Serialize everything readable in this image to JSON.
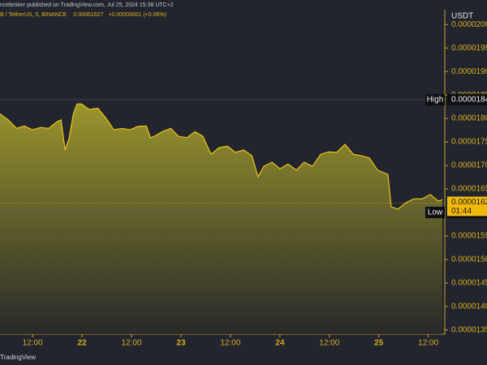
{
  "header": {
    "source": "ncebroker published on TradingView.com, Jul 25, 2024 15:38 UTC+2",
    "symbol": "B / TetherUS, 5, BINANCE",
    "last": "0.00001627",
    "change": "+0.00000001 (+0.06%)"
  },
  "footer": {
    "brand": "TradingView"
  },
  "chart_data": {
    "type": "area",
    "currency": "USDT",
    "x": [
      4.1,
      6.1,
      8.1,
      10.0,
      12.0,
      14.0,
      15.9,
      17.9,
      18.9,
      19.9,
      20.9,
      21.9,
      22.8,
      23.8,
      25.8,
      27.8,
      29.7,
      31.7,
      33.7,
      35.6,
      37.6,
      39.6,
      40.6,
      41.5,
      43.5,
      45.5,
      47.4,
      49.4,
      51.4,
      53.3,
      55.3,
      57.3,
      59.3,
      61.2,
      63.2,
      65.2,
      66.7,
      68.1,
      70.1,
      72.0,
      74.0,
      76.0,
      77.9,
      79.9,
      81.9,
      83.9,
      85.8,
      87.8,
      89.8,
      91.7,
      93.7,
      95.7,
      98.2,
      99.0,
      100.6,
      102.6,
      104.5,
      106.5,
      108.5,
      110.4,
      111.4
    ],
    "series": [
      {
        "name": "BTTC / TetherUS",
        "color": "#f0c419",
        "values": [
          1.81e-05,
          1.797e-05,
          1.779e-05,
          1.784e-05,
          1.776e-05,
          1.781e-05,
          1.779e-05,
          1.793e-05,
          1.797e-05,
          1.733e-05,
          1.759e-05,
          1.81e-05,
          1.831e-05,
          1.831e-05,
          1.819e-05,
          1.822e-05,
          1.802e-05,
          1.776e-05,
          1.779e-05,
          1.776e-05,
          1.783e-05,
          1.784e-05,
          1.759e-05,
          1.762e-05,
          1.772e-05,
          1.779e-05,
          1.762e-05,
          1.759e-05,
          1.772e-05,
          1.762e-05,
          1.724e-05,
          1.738e-05,
          1.741e-05,
          1.728e-05,
          1.733e-05,
          1.721e-05,
          1.676e-05,
          1.698e-05,
          1.707e-05,
          1.693e-05,
          1.703e-05,
          1.69e-05,
          1.707e-05,
          1.698e-05,
          1.724e-05,
          1.729e-05,
          1.728e-05,
          1.745e-05,
          1.724e-05,
          1.721e-05,
          1.716e-05,
          1.69e-05,
          1.681e-05,
          1.612e-05,
          1.607e-05,
          1.621e-05,
          1.629e-05,
          1.629e-05,
          1.638e-05,
          1.624e-05,
          1.627e-05
        ]
      }
    ],
    "xlim": [
      4.1,
      112
    ],
    "xticks": [
      {
        "value": 12,
        "label": "12:00"
      },
      {
        "value": 24,
        "label": "22"
      },
      {
        "value": 36,
        "label": "12:00"
      },
      {
        "value": 48,
        "label": "23"
      },
      {
        "value": 60,
        "label": "12:00"
      },
      {
        "value": 72,
        "label": "24"
      },
      {
        "value": 84,
        "label": "12:00"
      },
      {
        "value": 96,
        "label": "25"
      },
      {
        "value": 108,
        "label": "12:00"
      }
    ],
    "ylim": [
      1.341e-05,
      2.028e-05
    ],
    "yticks": [
      {
        "value": 2e-05,
        "label": "0.0000200"
      },
      {
        "value": 1.95e-05,
        "label": "0.0000195"
      },
      {
        "value": 1.9e-05,
        "label": "0.0000190"
      },
      {
        "value": 1.85e-05,
        "label": "0.0000185"
      },
      {
        "value": 1.8e-05,
        "label": "0.0000180"
      },
      {
        "value": 1.75e-05,
        "label": "0.0000175"
      },
      {
        "value": 1.7e-05,
        "label": "0.0000170"
      },
      {
        "value": 1.65e-05,
        "label": "0.0000165"
      },
      {
        "value": 1.55e-05,
        "label": "0.0000155"
      },
      {
        "value": 1.5e-05,
        "label": "0.0000150"
      },
      {
        "value": 1.45e-05,
        "label": "0.0000145"
      },
      {
        "value": 1.4e-05,
        "label": "0.0000140"
      },
      {
        "value": 1.35e-05,
        "label": "0.0000135"
      }
    ],
    "price_markers": [
      {
        "name": "High",
        "value": 1.84e-05,
        "label": "0.0000184"
      },
      {
        "name": "Low",
        "value": 1.6e-05,
        "label": "0.0000160"
      }
    ],
    "last_price": {
      "value": 1.62e-05,
      "label": "0.0000162",
      "countdown": "01:44"
    }
  }
}
